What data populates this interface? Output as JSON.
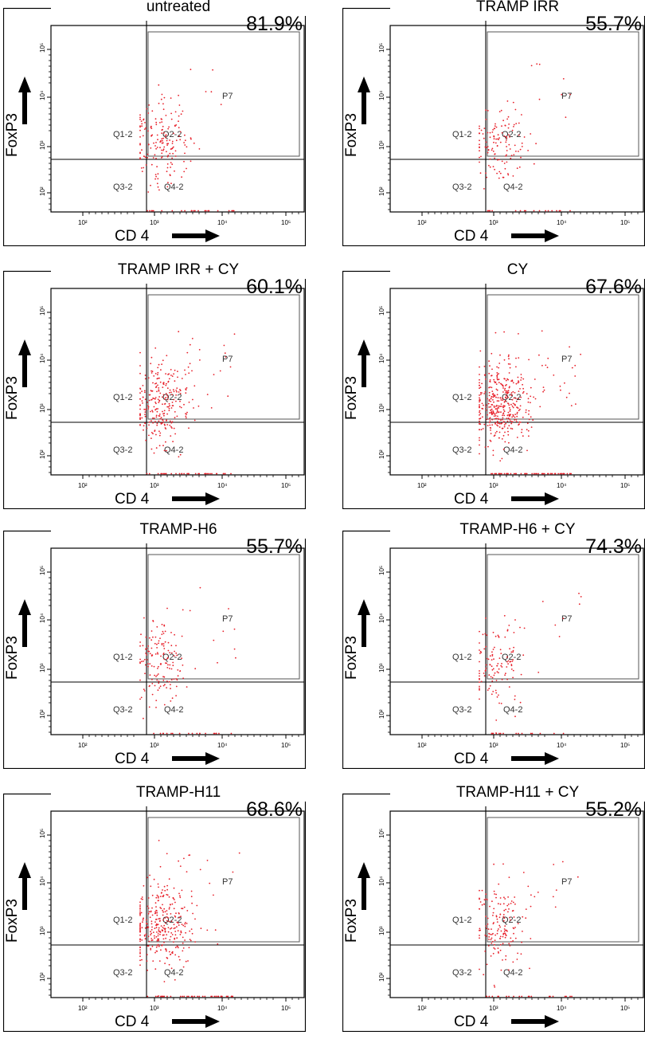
{
  "panels": [
    {
      "title": "untreated",
      "percent": "81.9%",
      "density": 180,
      "spread": 1.0
    },
    {
      "title": "TRAMP IRR",
      "percent": "55.7%",
      "density": 140,
      "spread": 1.0
    },
    {
      "title": "TRAMP IRR + CY",
      "percent": "60.1%",
      "density": 280,
      "spread": 1.0
    },
    {
      "title": "CY",
      "percent": "67.6%",
      "density": 420,
      "spread": 1.0
    },
    {
      "title": "TRAMP-H6",
      "percent": "55.7%",
      "density": 160,
      "spread": 0.9
    },
    {
      "title": "TRAMP-H6 + CY",
      "percent": "74.3%",
      "density": 130,
      "spread": 0.8
    },
    {
      "title": "TRAMP-H11",
      "percent": "68.6%",
      "density": 330,
      "spread": 1.0
    },
    {
      "title": "TRAMP-H11 + CY",
      "percent": "55.2%",
      "density": 170,
      "spread": 0.9
    }
  ],
  "labels": {
    "y_axis": "FoxP3",
    "x_axis": "CD 4",
    "gate": "P7",
    "q1": "Q1-2",
    "q2": "Q2-2",
    "q3": "Q3-2",
    "q4": "Q4-2"
  },
  "x_ticks": [
    "10²",
    "10³",
    "10⁴",
    "10⁵"
  ],
  "y_ticks": [
    "10²",
    "10³",
    "10⁴",
    "10⁵"
  ],
  "colors": {
    "dots": "#e8202a",
    "frame": "#000000",
    "gate": "#555555"
  },
  "chart_data": [
    {
      "type": "scatter",
      "title": "untreated",
      "xlabel": "CD 4",
      "ylabel": "FoxP3",
      "gate_percent": 81.9
    },
    {
      "type": "scatter",
      "title": "TRAMP IRR",
      "xlabel": "CD 4",
      "ylabel": "FoxP3",
      "gate_percent": 55.7
    },
    {
      "type": "scatter",
      "title": "TRAMP IRR + CY",
      "xlabel": "CD 4",
      "ylabel": "FoxP3",
      "gate_percent": 60.1
    },
    {
      "type": "scatter",
      "title": "CY",
      "xlabel": "CD 4",
      "ylabel": "FoxP3",
      "gate_percent": 67.6
    },
    {
      "type": "scatter",
      "title": "TRAMP-H6",
      "xlabel": "CD 4",
      "ylabel": "FoxP3",
      "gate_percent": 55.7
    },
    {
      "type": "scatter",
      "title": "TRAMP-H6 + CY",
      "xlabel": "CD 4",
      "ylabel": "FoxP3",
      "gate_percent": 74.3
    },
    {
      "type": "scatter",
      "title": "TRAMP-H11",
      "xlabel": "CD 4",
      "ylabel": "FoxP3",
      "gate_percent": 68.6
    },
    {
      "type": "scatter",
      "title": "TRAMP-H11 + CY",
      "xlabel": "CD 4",
      "ylabel": "FoxP3",
      "gate_percent": 55.2
    }
  ]
}
